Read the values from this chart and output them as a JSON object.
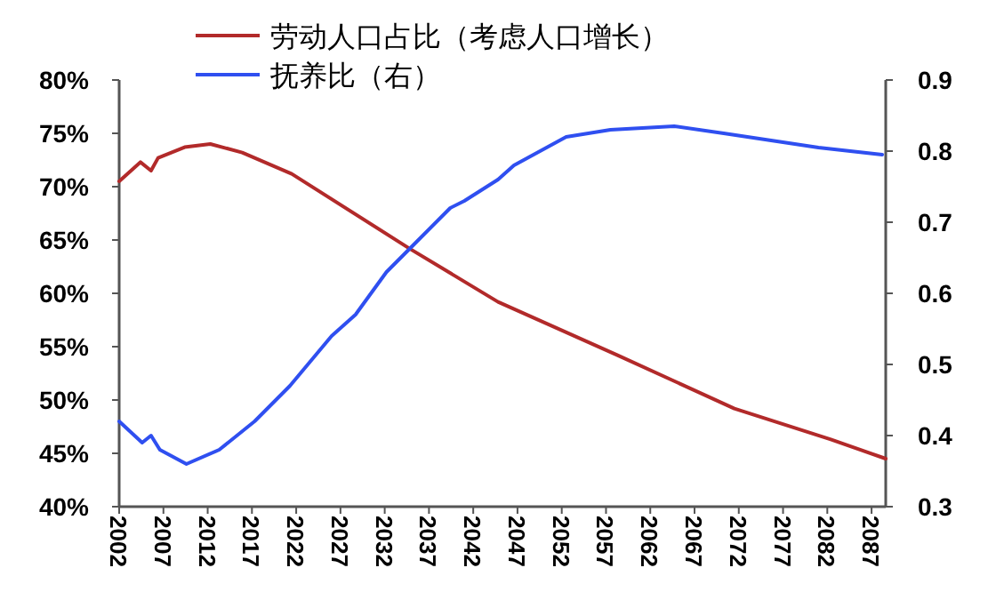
{
  "chart_data": {
    "type": "line",
    "legend": "top",
    "grid": false,
    "marker": "none",
    "line_style": "solid",
    "xlim": [
      2002,
      2088.6
    ],
    "xticks": [
      2002,
      2007,
      2012,
      2017,
      2022,
      2027,
      2032,
      2037,
      2042,
      2047,
      2052,
      2057,
      2062,
      2067,
      2072,
      2077,
      2082,
      2087
    ],
    "ylim": [
      40,
      80
    ],
    "yticks": [
      {
        "value": 40,
        "label": "40%"
      },
      {
        "value": 45,
        "label": "45%"
      },
      {
        "value": 50,
        "label": "50%"
      },
      {
        "value": 55,
        "label": "55%"
      },
      {
        "value": 60,
        "label": "60%"
      },
      {
        "value": 65,
        "label": "65%"
      },
      {
        "value": 70,
        "label": "70%"
      },
      {
        "value": 75,
        "label": "75%"
      },
      {
        "value": 80,
        "label": "80%"
      }
    ],
    "y2lim": [
      0.3,
      0.9
    ],
    "y2ticks": [
      0.3,
      0.4,
      0.5,
      0.6,
      0.7,
      0.8,
      0.9
    ],
    "series": [
      {
        "name": "劳动人口占比（考虑人口增长）",
        "color": "#b22a2a",
        "x": [
          2002,
          2004.4,
          2005.6,
          2006.4,
          2009.4,
          2012.3,
          2015.9,
          2021.5,
          2034.8,
          2044.8,
          2058.3,
          2071.5,
          2082.4,
          2088.6
        ],
        "values": [
          70.5,
          72.3,
          71.5,
          72.7,
          73.7,
          74.0,
          73.2,
          71.2,
          64.2,
          59.2,
          54.2,
          49.2,
          46.3,
          44.5
        ]
      },
      {
        "name": "抚养比（右）",
        "color": "#2f4ff0",
        "axis": "y2",
        "x": [
          2002,
          2004.6,
          2005.6,
          2006.6,
          2009.6,
          2013.3,
          2017.3,
          2021.3,
          2026,
          2028.7,
          2032.2,
          2035.4,
          2039.4,
          2041,
          2044.8,
          2046.6,
          2052.5,
          2057.5,
          2064.7,
          2070.3,
          2081,
          2088.2
        ],
        "values": [
          0.42,
          0.39,
          0.4,
          0.38,
          0.36,
          0.38,
          0.42,
          0.47,
          0.54,
          0.57,
          0.63,
          0.67,
          0.72,
          0.73,
          0.76,
          0.78,
          0.82,
          0.83,
          0.835,
          0.825,
          0.805,
          0.795
        ]
      }
    ]
  }
}
